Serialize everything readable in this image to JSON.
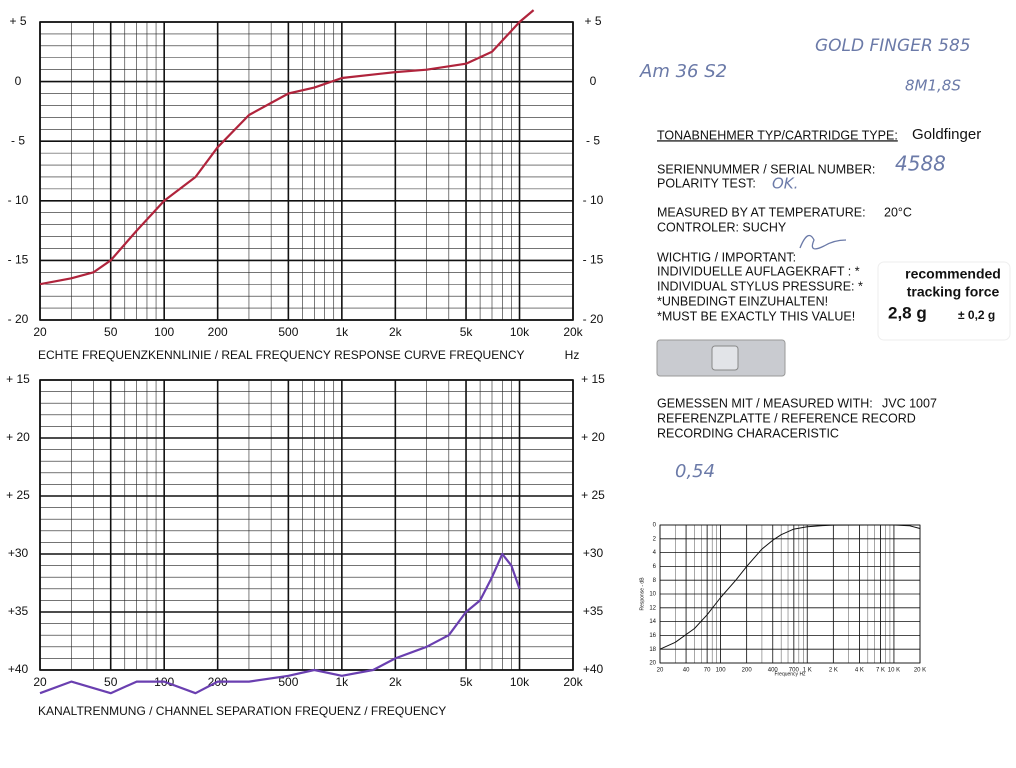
{
  "chart_data": [
    {
      "type": "line",
      "x_label": "ECHTE FREQUENZKENNLINIE / REAL  FREQUENCY  RESPONSE CURVE    FREQUENCY",
      "x_unit": "Hz",
      "log_x": true,
      "grid": true,
      "y_inverted": false,
      "xlim": [
        20,
        20000
      ],
      "xticks": [
        20,
        50,
        100,
        200,
        500,
        {
          "value": 1000,
          "label": "1k"
        },
        {
          "value": 2000,
          "label": "2k"
        },
        {
          "value": 5000,
          "label": "5k"
        },
        {
          "value": 10000,
          "label": "10k"
        },
        {
          "value": 20000,
          "label": "20k"
        }
      ],
      "ylim": [
        -20,
        5
      ],
      "yticks": [
        {
          "value": 5,
          "label": "+ 5"
        },
        0,
        {
          "value": -5,
          "label": "- 5"
        },
        {
          "value": -10,
          "label": "- 10"
        },
        {
          "value": -15,
          "label": "- 15"
        },
        {
          "value": -20,
          "label": "- 20"
        }
      ],
      "series": [
        {
          "color": "#b0243c",
          "x": [
            20,
            30,
            40,
            50,
            70,
            100,
            150,
            200,
            300,
            500,
            700,
            1000,
            2000,
            3000,
            5000,
            7000,
            10000,
            12000
          ],
          "values": [
            -17,
            -16.5,
            -16,
            -15,
            -12.5,
            -10,
            -8,
            -5.5,
            -2.8,
            -1,
            -0.5,
            0.3,
            0.8,
            1,
            1.5,
            2.5,
            5,
            6
          ]
        }
      ]
    },
    {
      "type": "line",
      "x_label": "KANALTRENMUNG / CHANNEL  SEPARATION     FREQUENZ / FREQUENCY",
      "log_x": true,
      "grid": true,
      "y_inverted": true,
      "xlim": [
        20,
        20000
      ],
      "xticks": [
        20,
        50,
        100,
        200,
        500,
        {
          "value": 1000,
          "label": "1k"
        },
        {
          "value": 2000,
          "label": "2k"
        },
        {
          "value": 5000,
          "label": "5k"
        },
        {
          "value": 10000,
          "label": "10k"
        },
        {
          "value": 20000,
          "label": "20k"
        }
      ],
      "ylim": [
        15,
        40
      ],
      "yticks": [
        {
          "value": 15,
          "label": "+ 15"
        },
        {
          "value": 20,
          "label": "+ 20"
        },
        {
          "value": 25,
          "label": "+ 25"
        },
        {
          "value": 30,
          "label": "+30"
        },
        {
          "value": 35,
          "label": "+35"
        },
        {
          "value": 40,
          "label": "+40"
        }
      ],
      "series": [
        {
          "color": "#6a3fb0",
          "x": [
            20,
            30,
            50,
            70,
            100,
            150,
            200,
            300,
            500,
            700,
            1000,
            1500,
            2000,
            3000,
            4000,
            5000,
            6000,
            7000,
            8000,
            9000,
            10000
          ],
          "values": [
            42,
            41,
            42,
            41,
            41,
            42,
            41,
            41,
            40.5,
            40,
            40.5,
            40,
            39,
            38,
            37,
            35,
            34,
            32,
            30,
            31,
            33
          ]
        }
      ]
    },
    {
      "type": "line",
      "x_label": "Frequency  Hz",
      "y_label": "Response - dB",
      "log_x": true,
      "grid": true,
      "y_inverted": true,
      "xlim": [
        20,
        20000
      ],
      "xticks": [
        20,
        40,
        70,
        100,
        200,
        400,
        700,
        {
          "value": 1000,
          "label": "1 K"
        },
        {
          "value": 2000,
          "label": "2 K"
        },
        {
          "value": 4000,
          "label": "4 K"
        },
        {
          "value": 7000,
          "label": "7 K"
        },
        {
          "value": 10000,
          "label": "10 K"
        },
        {
          "value": 20000,
          "label": "20 K"
        }
      ],
      "ylim": [
        0,
        20
      ],
      "yticks": [
        0,
        2,
        4,
        6,
        8,
        10,
        12,
        14,
        16,
        18,
        20
      ],
      "series": [
        {
          "color": "#111111",
          "x": [
            20,
            30,
            50,
            70,
            100,
            150,
            200,
            300,
            400,
            500,
            700,
            1000,
            1500,
            2000,
            5000,
            10000,
            15000,
            20000
          ],
          "values": [
            18,
            17,
            15,
            13,
            10.5,
            8,
            6,
            3.5,
            2.2,
            1.4,
            0.6,
            0.25,
            0.08,
            0.02,
            0,
            0,
            0.1,
            0.5
          ]
        }
      ]
    }
  ],
  "handwriting": {
    "model": "Am 36 S2",
    "name": "GOLD FINGER 585",
    "code": "8M1,8S",
    "serial": "4588",
    "polarity": "OK.",
    "note": "0,54"
  },
  "certificate": {
    "cartridge_label": "TONABNEHMER TYP/CARTRIDGE TYPE:",
    "cartridge": "Goldfinger",
    "serial_label": "SERIENNUMMER / SERIAL NUMBER:",
    "polarity_label": "POLARITY TEST:",
    "temp_label": "MEASURED BY AT TEMPERATURE:",
    "temp": "20°C",
    "controler": "CONTROLER: SUCHY",
    "important": [
      "WICHTIG / IMPORTANT:",
      "INDIVIDUELLE AUFLAGEKRAFT : *",
      "INDIVIDUAL STYLUS PRESSURE: *",
      "*UNBEDINGT EINZUHALTEN!",
      "*MUST BE EXACTLY THIS VALUE!"
    ],
    "force_title": [
      "recommended",
      "tracking force"
    ],
    "force": "2,8 g",
    "force_tolerance": "± 0,2 g",
    "measured_label": "GEMESSEN MIT / MEASURED WITH:",
    "measured": "JVC  1007",
    "record": "REFERENZPLATTE / REFERENCE RECORD",
    "characteristic": "RECORDING CHARACERISTIC"
  }
}
